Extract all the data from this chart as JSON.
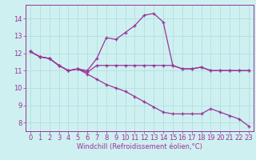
{
  "xlabel": "Windchill (Refroidissement éolien,°C)",
  "bg_color": "#cff0f0",
  "grid_color": "#aadddd",
  "line_color": "#993399",
  "spine_color": "#993399",
  "xlim": [
    -0.5,
    23.5
  ],
  "ylim": [
    7.5,
    14.8
  ],
  "xticks": [
    0,
    1,
    2,
    3,
    4,
    5,
    6,
    7,
    8,
    9,
    10,
    11,
    12,
    13,
    14,
    15,
    16,
    17,
    18,
    19,
    20,
    21,
    22,
    23
  ],
  "yticks": [
    8,
    9,
    10,
    11,
    12,
    13,
    14
  ],
  "line1_x": [
    0,
    1,
    2,
    3,
    4,
    5,
    6,
    7,
    8,
    9,
    10,
    11,
    12,
    13,
    14,
    15,
    16,
    17,
    18,
    19,
    20,
    21,
    22,
    23
  ],
  "line1_y": [
    12.1,
    11.8,
    11.7,
    11.3,
    11.0,
    11.1,
    11.0,
    11.7,
    12.9,
    12.8,
    13.2,
    13.6,
    14.2,
    14.3,
    13.8,
    11.3,
    11.1,
    11.1,
    11.2,
    11.0,
    11.0,
    11.0,
    11.0,
    11.0
  ],
  "line2_x": [
    0,
    1,
    2,
    3,
    4,
    5,
    6,
    7,
    8,
    9,
    10,
    11,
    12,
    13,
    14,
    15,
    16,
    17,
    18,
    19,
    20,
    21,
    22,
    23
  ],
  "line2_y": [
    12.1,
    11.8,
    11.7,
    11.3,
    11.0,
    11.1,
    10.8,
    10.5,
    10.2,
    10.0,
    9.8,
    9.5,
    9.2,
    8.9,
    8.6,
    8.5,
    8.5,
    8.5,
    8.5,
    8.8,
    8.6,
    8.4,
    8.2,
    7.8
  ],
  "line3_x": [
    0,
    1,
    2,
    3,
    4,
    5,
    6,
    7,
    8,
    9,
    10,
    11,
    12,
    13,
    14,
    15,
    16,
    17,
    18,
    19,
    20,
    21,
    22,
    23
  ],
  "line3_y": [
    12.1,
    11.8,
    11.7,
    11.3,
    11.0,
    11.1,
    10.9,
    11.3,
    11.3,
    11.3,
    11.3,
    11.3,
    11.3,
    11.3,
    11.3,
    11.3,
    11.1,
    11.1,
    11.2,
    11.0,
    11.0,
    11.0,
    11.0,
    11.0
  ],
  "tick_fontsize": 6,
  "xlabel_fontsize": 6
}
